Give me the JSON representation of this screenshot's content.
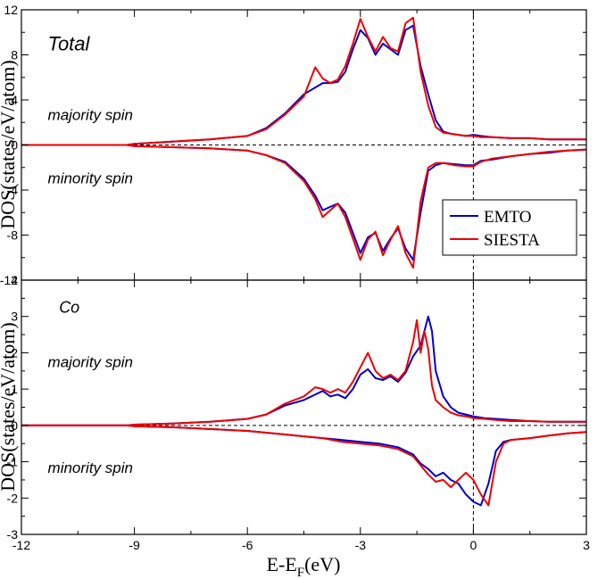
{
  "chart_data": [
    {
      "type": "line",
      "panel": "top",
      "xlim": [
        -12,
        3
      ],
      "ylim": [
        -12,
        12
      ],
      "ylabel": "DOS(states/eV/atom)",
      "y_ticks": [
        {
          "value": -12,
          "label": "-12"
        },
        {
          "value": -8,
          "label": "-8"
        },
        {
          "value": -4,
          "label": "-4"
        },
        {
          "value": 0,
          "label": "0"
        },
        {
          "value": 4,
          "label": "4"
        },
        {
          "value": 8,
          "label": "8"
        },
        {
          "value": 12,
          "label": "12"
        }
      ],
      "annotations": [
        {
          "text": "Total",
          "x": -11.3,
          "y": 8.4,
          "size": 22
        },
        {
          "text": "majority spin",
          "x": -11.3,
          "y": 2.2,
          "size": 17
        },
        {
          "text": "minority spin",
          "x": -11.3,
          "y": -3.4,
          "size": 17
        }
      ],
      "legend": {
        "position": "right",
        "entries": [
          "EMTO",
          "SIESTA"
        ]
      },
      "series": [
        {
          "name": "EMTO",
          "color": "#0000cc",
          "majority": {
            "x": [
              -12,
              -9.2,
              -9,
              -8,
              -7,
              -6,
              -5.5,
              -5,
              -4.5,
              -4,
              -3.8,
              -3.6,
              -3.4,
              -3.2,
              -3,
              -2.8,
              -2.6,
              -2.4,
              -2.2,
              -2,
              -1.8,
              -1.6,
              -1.4,
              -1.2,
              -1,
              -0.8,
              -0.6,
              -0.4,
              -0.2,
              0,
              0.2,
              0.5,
              1,
              1.5,
              2,
              2.5,
              3
            ],
            "y": [
              0,
              0,
              0.1,
              0.3,
              0.5,
              0.8,
              1.5,
              2.8,
              4.5,
              5.5,
              5.5,
              5.6,
              6.5,
              8.5,
              10.2,
              9.5,
              8.0,
              9.0,
              8.5,
              8.0,
              10.2,
              10.6,
              7.0,
              4.5,
              2.2,
              1.2,
              1.0,
              0.9,
              0.8,
              0.9,
              0.8,
              0.7,
              0.6,
              0.6,
              0.5,
              0.5,
              0.5
            ]
          },
          "minority": {
            "x": [
              -12,
              -9.2,
              -9,
              -8,
              -7,
              -6,
              -5.5,
              -5,
              -4.5,
              -4.2,
              -4,
              -3.8,
              -3.6,
              -3.4,
              -3.2,
              -3,
              -2.8,
              -2.6,
              -2.4,
              -2.2,
              -2,
              -1.8,
              -1.6,
              -1.4,
              -1.2,
              -1,
              -0.8,
              -0.5,
              -0.2,
              0,
              0.2,
              0.5,
              1,
              1.5,
              2,
              2.5,
              3
            ],
            "y": [
              0,
              0,
              -0.1,
              -0.2,
              -0.3,
              -0.5,
              -0.9,
              -1.5,
              -3.0,
              -4.5,
              -5.8,
              -5.5,
              -5.2,
              -6.0,
              -7.8,
              -9.6,
              -8.2,
              -7.8,
              -9.4,
              -8.3,
              -7.4,
              -9.2,
              -10.2,
              -6.0,
              -2.3,
              -1.8,
              -1.6,
              -1.7,
              -1.8,
              -1.8,
              -1.4,
              -1.3,
              -1.0,
              -0.8,
              -0.7,
              -0.5,
              -0.4
            ]
          }
        },
        {
          "name": "SIESTA",
          "color": "#ee0000",
          "majority": {
            "x": [
              -12,
              -9.2,
              -9,
              -8,
              -7,
              -6,
              -5.5,
              -5,
              -4.5,
              -4.2,
              -4,
              -3.8,
              -3.6,
              -3.4,
              -3.2,
              -3,
              -2.8,
              -2.6,
              -2.4,
              -2.2,
              -2,
              -1.8,
              -1.6,
              -1.4,
              -1.2,
              -1,
              -0.8,
              -0.6,
              -0.4,
              -0.2,
              0,
              0.2,
              0.5,
              1,
              1.5,
              2,
              2.5,
              3
            ],
            "y": [
              0,
              0,
              0.1,
              0.3,
              0.5,
              0.8,
              1.4,
              2.7,
              4.3,
              6.9,
              5.9,
              5.5,
              5.8,
              7.0,
              9.0,
              11.2,
              9.6,
              8.3,
              9.6,
              8.6,
              8.3,
              10.8,
              11.3,
              6.5,
              3.5,
              1.6,
              1.1,
              1.0,
              0.9,
              0.8,
              0.8,
              0.7,
              0.7,
              0.6,
              0.6,
              0.5,
              0.5,
              0.5
            ]
          },
          "minority": {
            "x": [
              -12,
              -9.2,
              -9,
              -8,
              -7,
              -6,
              -5.5,
              -5,
              -4.5,
              -4.2,
              -4,
              -3.8,
              -3.6,
              -3.4,
              -3.2,
              -3,
              -2.8,
              -2.6,
              -2.4,
              -2.2,
              -2,
              -1.8,
              -1.6,
              -1.4,
              -1.2,
              -1,
              -0.8,
              -0.5,
              -0.2,
              0,
              0.2,
              0.5,
              1,
              1.5,
              2,
              2.5,
              3
            ],
            "y": [
              0,
              0,
              -0.1,
              -0.2,
              -0.3,
              -0.5,
              -0.9,
              -1.6,
              -3.2,
              -4.8,
              -6.4,
              -5.8,
              -5.2,
              -6.4,
              -8.3,
              -10.2,
              -8.4,
              -7.7,
              -9.8,
              -8.4,
              -7.2,
              -9.6,
              -10.9,
              -5.0,
              -2.0,
              -1.6,
              -1.6,
              -1.8,
              -1.9,
              -1.9,
              -1.5,
              -1.2,
              -1.0,
              -0.8,
              -0.6,
              -0.5,
              -0.4
            ]
          }
        }
      ]
    },
    {
      "type": "line",
      "panel": "bottom",
      "xlim": [
        -12,
        3
      ],
      "ylim": [
        -3,
        4
      ],
      "ylabel": "DOS(states/eV/atom)",
      "xlabel": "E-E",
      "xlabel_sub": "F",
      "xlabel_units": "(eV)",
      "x_ticks": [
        {
          "value": -12,
          "label": "-12"
        },
        {
          "value": -9,
          "label": "-9"
        },
        {
          "value": -6,
          "label": "-6"
        },
        {
          "value": -3,
          "label": "-3"
        },
        {
          "value": 0,
          "label": "0"
        },
        {
          "value": 3,
          "label": "3"
        }
      ],
      "y_ticks": [
        {
          "value": -3,
          "label": "-3"
        },
        {
          "value": -2,
          "label": "-2"
        },
        {
          "value": -1,
          "label": "-1"
        },
        {
          "value": 0,
          "label": "0"
        },
        {
          "value": 1,
          "label": "1"
        },
        {
          "value": 2,
          "label": "2"
        },
        {
          "value": 3,
          "label": "3"
        },
        {
          "value": 4,
          "label": "4"
        }
      ],
      "annotations": [
        {
          "text": "Co",
          "x": -11.0,
          "y": 3.1,
          "size": 18
        },
        {
          "text": "majority spin",
          "x": -11.3,
          "y": 1.6,
          "size": 17
        },
        {
          "text": "minority spin",
          "x": -11.3,
          "y": -1.3,
          "size": 17
        }
      ],
      "series": [
        {
          "name": "EMTO",
          "color": "#0000cc",
          "majority": {
            "x": [
              -12,
              -9.2,
              -9,
              -8,
              -7,
              -6,
              -5.5,
              -5,
              -4.5,
              -4,
              -3.8,
              -3.6,
              -3.4,
              -3.2,
              -3,
              -2.8,
              -2.6,
              -2.4,
              -2.2,
              -2,
              -1.8,
              -1.6,
              -1.4,
              -1.2,
              -1.1,
              -1,
              -0.8,
              -0.6,
              -0.4,
              -0.2,
              0,
              0.3,
              0.6,
              1,
              1.5,
              2,
              2.5,
              3
            ],
            "y": [
              0,
              0,
              0.02,
              0.05,
              0.1,
              0.18,
              0.3,
              0.55,
              0.7,
              0.95,
              0.8,
              0.85,
              0.75,
              1.0,
              1.4,
              1.55,
              1.3,
              1.25,
              1.35,
              1.2,
              1.45,
              1.9,
              2.2,
              3.0,
              2.6,
              1.5,
              0.8,
              0.5,
              0.35,
              0.3,
              0.25,
              0.2,
              0.18,
              0.15,
              0.12,
              0.1,
              0.1,
              0.1
            ]
          },
          "minority": {
            "x": [
              -12,
              -9.2,
              -9,
              -8,
              -7,
              -6,
              -5.5,
              -5,
              -4.5,
              -4,
              -3.5,
              -3,
              -2.5,
              -2,
              -1.6,
              -1.4,
              -1.2,
              -1,
              -0.8,
              -0.6,
              -0.4,
              -0.2,
              0,
              0.2,
              0.4,
              0.6,
              0.8,
              1,
              1.5,
              2,
              2.5,
              3
            ],
            "y": [
              0,
              0,
              -0.02,
              -0.05,
              -0.1,
              -0.15,
              -0.2,
              -0.25,
              -0.3,
              -0.35,
              -0.4,
              -0.45,
              -0.5,
              -0.6,
              -0.8,
              -1.05,
              -1.2,
              -1.4,
              -1.3,
              -1.5,
              -1.6,
              -1.9,
              -2.1,
              -2.2,
              -1.6,
              -0.7,
              -0.45,
              -0.4,
              -0.35,
              -0.28,
              -0.22,
              -0.18
            ]
          }
        },
        {
          "name": "SIESTA",
          "color": "#ee0000",
          "majority": {
            "x": [
              -12,
              -9.2,
              -9,
              -8,
              -7,
              -6,
              -5.5,
              -5,
              -4.5,
              -4.2,
              -4,
              -3.8,
              -3.6,
              -3.4,
              -3.2,
              -3,
              -2.8,
              -2.6,
              -2.4,
              -2.2,
              -2,
              -1.8,
              -1.6,
              -1.5,
              -1.4,
              -1.3,
              -1.2,
              -1.1,
              -1,
              -0.8,
              -0.6,
              -0.4,
              -0.2,
              0,
              0.3,
              0.6,
              1,
              1.5,
              2,
              2.5,
              3
            ],
            "y": [
              0,
              0,
              0.02,
              0.05,
              0.1,
              0.18,
              0.3,
              0.6,
              0.8,
              1.05,
              1.0,
              0.9,
              1.0,
              0.9,
              1.2,
              1.6,
              2.0,
              1.5,
              1.3,
              1.4,
              1.25,
              1.5,
              2.3,
              2.9,
              2.0,
              2.6,
              2.1,
              1.1,
              0.7,
              0.5,
              0.35,
              0.28,
              0.25,
              0.2,
              0.18,
              0.15,
              0.12,
              0.12,
              0.1,
              0.1,
              0.1
            ]
          },
          "minority": {
            "x": [
              -12,
              -9.2,
              -9,
              -8,
              -7,
              -6,
              -5.5,
              -5,
              -4.5,
              -4,
              -3.5,
              -3,
              -2.5,
              -2,
              -1.6,
              -1.4,
              -1.2,
              -1,
              -0.8,
              -0.6,
              -0.4,
              -0.2,
              0,
              0.2,
              0.4,
              0.6,
              0.8,
              1,
              1.5,
              2,
              2.5,
              3
            ],
            "y": [
              0,
              0,
              -0.02,
              -0.05,
              -0.1,
              -0.15,
              -0.2,
              -0.25,
              -0.3,
              -0.35,
              -0.45,
              -0.5,
              -0.55,
              -0.65,
              -0.85,
              -1.1,
              -1.35,
              -1.55,
              -1.5,
              -1.7,
              -1.5,
              -1.3,
              -1.5,
              -1.9,
              -2.2,
              -1.0,
              -0.5,
              -0.4,
              -0.35,
              -0.28,
              -0.22,
              -0.18
            ]
          }
        }
      ]
    }
  ]
}
